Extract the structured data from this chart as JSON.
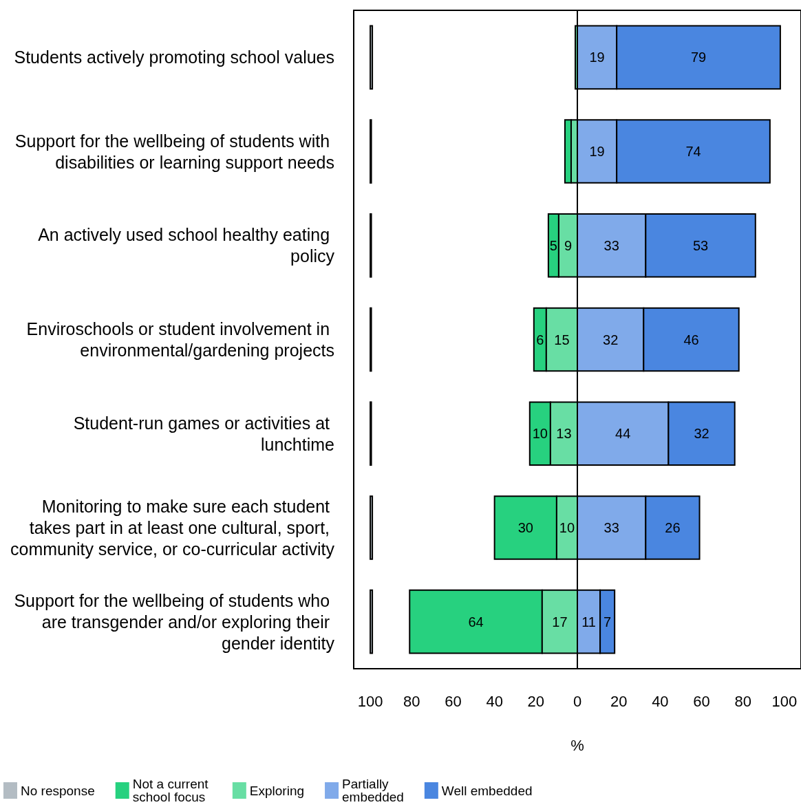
{
  "chart_data": {
    "type": "bar",
    "orientation": "horizontal",
    "xlabel": "%",
    "categories": [
      "Students actively promoting school values",
      "Support for the wellbeing of students with disabilities or learning support needs",
      "An actively used school healthy eating policy",
      "Enviroschools or student involvement in environmental/gardening projects",
      "Student-run games or activities at lunchtime",
      "Monitoring to make sure each student takes part in at least one cultural, sport, community service, or co-curricular activity",
      "Support for the wellbeing of students who are transgender and/or exploring their gender identity"
    ],
    "series": [
      {
        "name": "No response",
        "color": "#b3bcc3",
        "values": [
          1,
          0.5,
          0.5,
          0.5,
          0.5,
          1,
          1
        ],
        "base": [
          -100,
          -100,
          -100,
          -100,
          -100,
          -100,
          -100
        ]
      },
      {
        "name": "Not a current school focus",
        "color": "#27d17f",
        "values": [
          null,
          3,
          5,
          6,
          10,
          30,
          64
        ],
        "base": [
          null,
          -6,
          -14,
          -21,
          -23,
          -40,
          -81
        ],
        "value_labels": [
          null,
          null,
          "5",
          "6",
          "10",
          "30",
          "64"
        ]
      },
      {
        "name": "Exploring",
        "color": "#68dea4",
        "values": [
          1,
          3,
          9,
          15,
          13,
          10,
          17
        ],
        "base": [
          -1,
          -3,
          -9,
          -15,
          -13,
          -10,
          -17
        ],
        "value_labels": [
          null,
          null,
          "9",
          "15",
          "13",
          "10",
          "17"
        ]
      },
      {
        "name": "Partially embedded",
        "color": "#80aaea",
        "values": [
          19,
          19,
          33,
          32,
          44,
          33,
          11
        ],
        "base": [
          0,
          0,
          0,
          0,
          0,
          0,
          0
        ],
        "value_labels": [
          "19",
          "19",
          "33",
          "32",
          "44",
          "33",
          "11"
        ]
      },
      {
        "name": "Well embedded",
        "color": "#4a86e0",
        "values": [
          79,
          74,
          53,
          46,
          32,
          26,
          7
        ],
        "base": [
          19,
          19,
          33,
          32,
          44,
          33,
          11
        ],
        "value_labels": [
          "79",
          "74",
          "53",
          "46",
          "32",
          "26",
          "7"
        ]
      }
    ],
    "xlim": [
      -108,
      108
    ],
    "xticks": [
      {
        "value": -100,
        "label": "100"
      },
      {
        "value": -80,
        "label": "80"
      },
      {
        "value": -60,
        "label": "60"
      },
      {
        "value": -40,
        "label": "40"
      },
      {
        "value": -20,
        "label": "20"
      },
      0,
      20,
      40,
      60,
      80,
      100
    ],
    "ref_lines": [
      {
        "axis": "x",
        "value": 0,
        "color": "#000000"
      }
    ],
    "grid": false,
    "legend": "bottom"
  }
}
